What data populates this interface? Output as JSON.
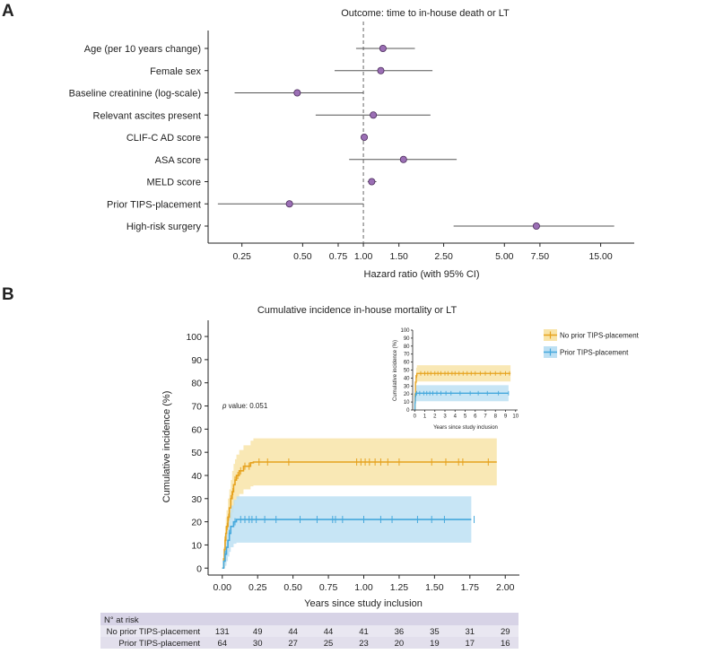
{
  "colors": {
    "forest_point": "#9b6fb5",
    "forest_point_stroke": "#4a2a5a",
    "no_tips": "#e6a21e",
    "no_tips_band": "#f8e4a8",
    "prior_tips": "#45a8dc",
    "prior_tips_band": "#bde0f3",
    "risk_header_bg": "#d7d3e6",
    "risk_row_bg": "#e9e7f1"
  },
  "panel_a": {
    "letter": "A",
    "title": "Outcome: time to in-house death or LT",
    "xlabel": "Hazard ratio (with 95% CI)"
  },
  "panel_b": {
    "letter": "B",
    "title": "Cumulative incidence in-house mortality or LT",
    "xlabel": "Years since study inclusion",
    "ylabel": "Cumulative incidence (%)",
    "p_prefix": "p",
    "p_value_text": " value: 0.051",
    "legend": [
      "No prior TIPS-placement",
      "Prior TIPS-placement"
    ]
  },
  "inset": {
    "xlabel": "Years since study inclusion",
    "ylabel": "Cumulative incidence (%)"
  },
  "risk_table": {
    "title": "N° at risk",
    "rows": [
      {
        "label": "No prior TIPS-placement",
        "values": [
          "131",
          "49",
          "44",
          "44",
          "41",
          "36",
          "35",
          "31",
          "29"
        ]
      },
      {
        "label": "Prior TIPS-placement",
        "values": [
          "64",
          "30",
          "27",
          "25",
          "23",
          "20",
          "19",
          "17",
          "16"
        ]
      }
    ]
  },
  "chart_data": [
    {
      "type": "forest",
      "title": "Outcome: time to in-house death or LT",
      "xlabel": "Hazard ratio (with 95% CI)",
      "xscale": "log",
      "xlim": [
        0.17,
        22
      ],
      "reference_line": 1.0,
      "ticks": [
        0.25,
        0.5,
        0.75,
        1.0,
        1.5,
        2.5,
        5.0,
        7.5,
        15.0
      ],
      "tick_labels": [
        "0.25",
        "0.50",
        "0.75",
        "1.00",
        "1.50",
        "2.50",
        "5.00",
        "7.50",
        "15.00"
      ],
      "rows": [
        {
          "label": "Age (per 10 years change)",
          "hr": 1.25,
          "lo": 0.92,
          "hi": 1.8
        },
        {
          "label": "Female sex",
          "hr": 1.22,
          "lo": 0.72,
          "hi": 2.2
        },
        {
          "label": "Baseline creatinine (log-scale)",
          "hr": 0.47,
          "lo": 0.23,
          "hi": 1.0
        },
        {
          "label": "Relevant ascites present",
          "hr": 1.12,
          "lo": 0.58,
          "hi": 2.15
        },
        {
          "label": "CLIF-C AD score",
          "hr": 1.01,
          "lo": 0.97,
          "hi": 1.05
        },
        {
          "label": "ASA score",
          "hr": 1.58,
          "lo": 0.85,
          "hi": 2.9
        },
        {
          "label": "MELD score",
          "hr": 1.1,
          "lo": 1.05,
          "hi": 1.16
        },
        {
          "label": "Prior TIPS-placement",
          "hr": 0.43,
          "lo": 0.19,
          "hi": 1.0
        },
        {
          "label": "High-risk surgery",
          "hr": 7.2,
          "lo": 2.8,
          "hi": 17.5
        }
      ]
    },
    {
      "type": "line",
      "subtype": "step-cumulative-incidence",
      "title": "Cumulative incidence in-house mortality or LT",
      "xlabel": "Years since study inclusion",
      "ylabel": "Cumulative incidence (%)",
      "xlim": [
        -0.1,
        2.1
      ],
      "ylim": [
        -3,
        107
      ],
      "xticks": [
        0.0,
        0.25,
        0.5,
        0.75,
        1.0,
        1.25,
        1.5,
        1.75,
        2.0
      ],
      "xtick_labels": [
        "0.00",
        "0.25",
        "0.50",
        "0.75",
        "1.00",
        "1.25",
        "1.50",
        "1.75",
        "2.00"
      ],
      "yticks": [
        0,
        10,
        20,
        30,
        40,
        50,
        60,
        70,
        80,
        90,
        100
      ],
      "ytick_labels": [
        "0",
        "10",
        "20",
        "30",
        "40",
        "50",
        "60",
        "70",
        "80",
        "90",
        "100"
      ],
      "series": [
        {
          "name": "No prior TIPS-placement",
          "x": [
            0,
            0.01,
            0.015,
            0.02,
            0.025,
            0.03,
            0.04,
            0.05,
            0.06,
            0.07,
            0.08,
            0.09,
            0.1,
            0.12,
            0.15,
            0.2,
            0.22,
            1.94
          ],
          "y": [
            0,
            4,
            8,
            12,
            15,
            18,
            22,
            26,
            30,
            33,
            36,
            38,
            40,
            42,
            44,
            45.5,
            45.8,
            45.8
          ],
          "ci_lower": [
            0,
            1,
            3,
            6,
            9,
            12,
            15,
            18,
            21,
            24,
            27,
            29,
            30,
            32,
            34,
            35.3,
            35.7,
            35.7
          ],
          "ci_upper": [
            0,
            9,
            14,
            18,
            22,
            25,
            30,
            34,
            38,
            42,
            45,
            47,
            49,
            51,
            53,
            55,
            56,
            56
          ],
          "censor_x": [
            0.02,
            0.035,
            0.045,
            0.06,
            0.075,
            0.09,
            0.11,
            0.13,
            0.16,
            0.19,
            0.26,
            0.32,
            0.47,
            0.95,
            0.98,
            1.01,
            1.04,
            1.08,
            1.12,
            1.17,
            1.25,
            1.48,
            1.58,
            1.67,
            1.7,
            1.88
          ]
        },
        {
          "name": "Prior TIPS-placement",
          "x": [
            0,
            0.01,
            0.02,
            0.03,
            0.04,
            0.05,
            0.06,
            0.08,
            0.1,
            1.76
          ],
          "y": [
            0,
            3,
            6,
            9,
            12,
            15,
            18,
            20,
            21,
            21
          ],
          "ci_lower": [
            0,
            0,
            1,
            3,
            5,
            7,
            9,
            10.5,
            11,
            11
          ],
          "ci_upper": [
            0,
            6,
            11,
            16,
            20,
            24,
            27,
            29.5,
            31,
            31
          ],
          "censor_x": [
            0.02,
            0.05,
            0.09,
            0.13,
            0.16,
            0.19,
            0.21,
            0.24,
            0.3,
            0.38,
            0.55,
            0.67,
            0.78,
            0.8,
            0.85,
            1.0,
            1.12,
            1.2,
            1.38,
            1.48,
            1.57,
            1.78
          ]
        }
      ],
      "annotation": "p value: 0.051",
      "legend": "top-right, outside plot"
    },
    {
      "type": "line",
      "subtype": "inset-step-cumulative-incidence",
      "xlabel": "Years since study inclusion",
      "ylabel": "Cumulative incidence (%)",
      "xlim": [
        -0.2,
        10.2
      ],
      "ylim": [
        0,
        100
      ],
      "xticks": [
        0,
        1,
        2,
        3,
        4,
        5,
        6,
        7,
        8,
        9,
        10
      ],
      "xtick_labels": [
        "0",
        "1",
        "2",
        "3",
        "4",
        "5",
        "6",
        "7",
        "8",
        "9",
        "10"
      ],
      "yticks": [
        0,
        10,
        20,
        30,
        40,
        50,
        60,
        70,
        80,
        90,
        100
      ],
      "ytick_labels": [
        "0",
        "10",
        "20",
        "30",
        "40",
        "50",
        "60",
        "70",
        "80",
        "90",
        "100"
      ],
      "series": [
        {
          "name": "No prior TIPS-placement",
          "x": [
            0,
            0.03,
            0.08,
            0.15,
            0.22,
            9.5
          ],
          "y": [
            0,
            20,
            35,
            43,
            45.8,
            45.8
          ],
          "ci_lower": [
            0,
            12,
            25,
            33,
            35.7,
            35.7
          ],
          "ci_upper": [
            0,
            28,
            44,
            53,
            56,
            56
          ],
          "censor_x": [
            0.2,
            0.6,
            1.0,
            1.3,
            1.6,
            2.0,
            2.3,
            2.6,
            3.0,
            3.3,
            3.7,
            4.0,
            4.4,
            4.8,
            5.2,
            5.6,
            6.0,
            6.5,
            7.0,
            7.5,
            8.0,
            8.5,
            9.0,
            9.4
          ]
        },
        {
          "name": "Prior TIPS-placement",
          "x": [
            0,
            0.03,
            0.06,
            0.1,
            9.3
          ],
          "y": [
            0,
            9,
            17,
            21,
            21
          ],
          "ci_lower": [
            0,
            3,
            9,
            11,
            11
          ],
          "ci_upper": [
            0,
            16,
            27,
            31,
            31
          ],
          "censor_x": [
            0.2,
            0.5,
            0.9,
            1.2,
            1.5,
            1.8,
            2.2,
            2.6,
            3.1,
            3.6,
            4.5,
            5.5,
            6.3,
            7.2,
            8.3,
            9.3
          ]
        }
      ]
    }
  ]
}
